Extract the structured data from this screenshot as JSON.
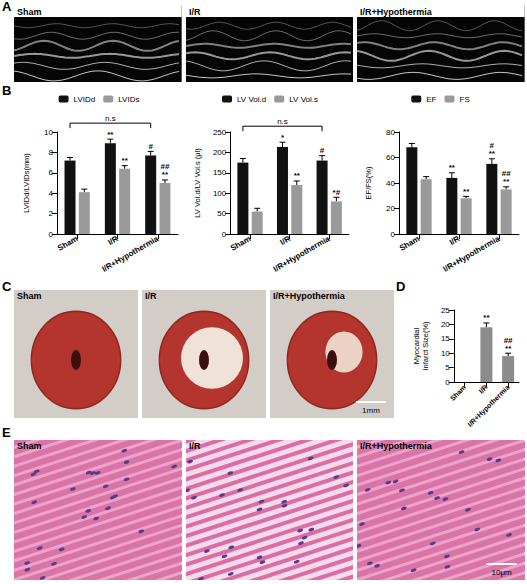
{
  "images": [
    {
      "panel": "A",
      "labels": [
        "Sham",
        "I/R",
        "I/R+Hypothermia"
      ]
    },
    {
      "panel": "C",
      "labels": [
        "Sham",
        "I/R",
        "I/R+Hypothermia"
      ],
      "scale_bar": "1mm"
    },
    {
      "panel": "E",
      "labels": [
        "Sham",
        "I/R",
        "I/R+Hypothermia"
      ],
      "scale_bar": "10μm"
    }
  ],
  "chart_data": [
    {
      "type": "bar",
      "panel": "B",
      "y_label": "LVIDd/LVIDs(mm)",
      "categories": [
        "Sham",
        "I/R",
        "I/R+Hypothermia"
      ],
      "series": [
        {
          "name": "LVIDd",
          "color": "#111111",
          "values": [
            7.2,
            8.9,
            7.7
          ],
          "errors": [
            0.3,
            0.4,
            0.4
          ],
          "annotations": [
            null,
            "**",
            "#"
          ]
        },
        {
          "name": "LVIDs",
          "color": "#9a9a9a",
          "values": [
            4.1,
            6.4,
            5.0
          ],
          "errors": [
            0.3,
            0.3,
            0.3
          ],
          "annotations": [
            null,
            "**",
            "##\n**"
          ]
        }
      ],
      "ylim": [
        0,
        10
      ],
      "yticks": [
        0,
        2,
        4,
        6,
        8,
        10
      ],
      "grid": false,
      "legend": "top",
      "brackets": [
        {
          "series": "LVIDd",
          "from": "Sham",
          "to": "I/R+Hypothermia",
          "label": "n.s"
        }
      ]
    },
    {
      "type": "bar",
      "panel": "B",
      "y_label": "LV Vol.d/LV Vol.s (μl)",
      "categories": [
        "Sham",
        "I/R",
        "I/R+Hypothermia"
      ],
      "series": [
        {
          "name": "LV Vol.d",
          "color": "#111111",
          "values": [
            175,
            213,
            180
          ],
          "errors": [
            10,
            12,
            12
          ],
          "annotations": [
            null,
            "*",
            "#"
          ]
        },
        {
          "name": "LV Vol.s",
          "color": "#9a9a9a",
          "values": [
            55,
            120,
            80
          ],
          "errors": [
            8,
            10,
            10
          ],
          "annotations": [
            null,
            "**",
            "*#"
          ]
        }
      ],
      "ylim": [
        0,
        250
      ],
      "yticks": [
        0,
        50,
        100,
        150,
        200,
        250
      ],
      "grid": false,
      "legend": "top",
      "brackets": [
        {
          "series": "LV Vol.d",
          "from": "Sham",
          "to": "I/R+Hypothermia",
          "label": "n.s"
        }
      ]
    },
    {
      "type": "bar",
      "panel": "B",
      "y_label": "EF/FS(%)",
      "categories": [
        "Sham",
        "I/R",
        "I/R+Hypothermia"
      ],
      "series": [
        {
          "name": "EF",
          "color": "#111111",
          "values": [
            68,
            44,
            55
          ],
          "errors": [
            3,
            4,
            4
          ],
          "annotations": [
            null,
            "**",
            "#\n**"
          ]
        },
        {
          "name": "FS",
          "color": "#9a9a9a",
          "values": [
            43,
            28,
            35
          ],
          "errors": [
            2,
            1.5,
            2
          ],
          "annotations": [
            null,
            "**",
            "##\n**"
          ]
        }
      ],
      "ylim": [
        0,
        80
      ],
      "yticks": [
        0,
        20,
        40,
        60,
        80
      ],
      "grid": false,
      "legend": "top"
    },
    {
      "type": "bar",
      "panel": "D",
      "y_label": "Myocardial Infarct Size(%)",
      "categories": [
        "Sham",
        "I/R",
        "I/R+Hypothermia"
      ],
      "series": [
        {
          "color": "#8c8c8c",
          "values": [
            0,
            19,
            9
          ],
          "errors": [
            0,
            1.5,
            1
          ],
          "annotations": [
            null,
            "**",
            "##\n**"
          ]
        }
      ],
      "ylim": [
        0,
        25
      ],
      "yticks": [
        0,
        5,
        10,
        15,
        20,
        25
      ],
      "grid": false
    }
  ]
}
